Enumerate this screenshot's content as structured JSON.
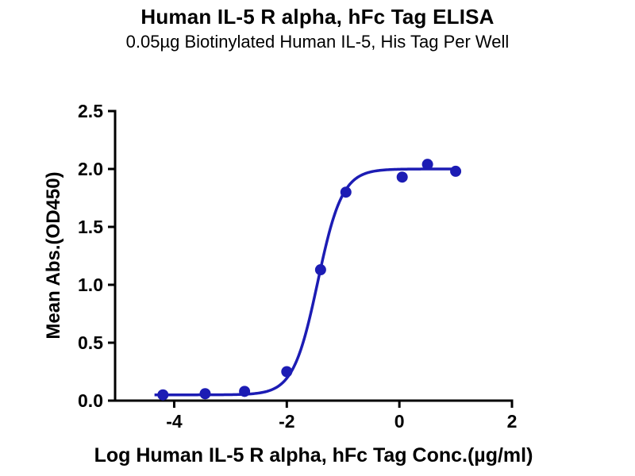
{
  "page": {
    "title": "Human IL-5 R alpha, hFc Tag ELISA",
    "subtitle": "0.05µg Biotinylated Human IL-5, His Tag Per Well"
  },
  "chart_data": {
    "type": "scatter",
    "title": "Human IL-5 R alpha, hFc Tag ELISA",
    "subtitle": "0.05µg Biotinylated Human IL-5, His Tag Per Well",
    "xlabel": "Log Human IL-5 R alpha, hFc Tag Conc.(µg/ml)",
    "ylabel": "Mean Abs.(OD450)",
    "xlim": [
      -5.05,
      2
    ],
    "ylim": [
      0,
      2.5
    ],
    "x_ticks": [
      -4,
      -2,
      0,
      2
    ],
    "y_ticks": [
      0.0,
      0.5,
      1.0,
      1.5,
      2.0,
      2.5
    ],
    "grid": "off",
    "legend": "none",
    "marker_color": "#1C1CB4",
    "line_color": "#1C1CB4",
    "axis_color": "#000000",
    "points": [
      {
        "x": -4.2,
        "y": 0.05
      },
      {
        "x": -3.45,
        "y": 0.06
      },
      {
        "x": -2.75,
        "y": 0.08
      },
      {
        "x": -2.0,
        "y": 0.25
      },
      {
        "x": -1.4,
        "y": 1.13
      },
      {
        "x": -0.95,
        "y": 1.8
      },
      {
        "x": 0.05,
        "y": 1.93
      },
      {
        "x": 0.5,
        "y": 2.04
      },
      {
        "x": 1.0,
        "y": 1.98
      }
    ],
    "fit_curve": {
      "model": "four-parameter-logistic",
      "bottom": 0.05,
      "top": 2.0,
      "log_ec50": -1.45,
      "hill": 2.0,
      "x_start": -4.35,
      "x_end": 1.05
    }
  }
}
